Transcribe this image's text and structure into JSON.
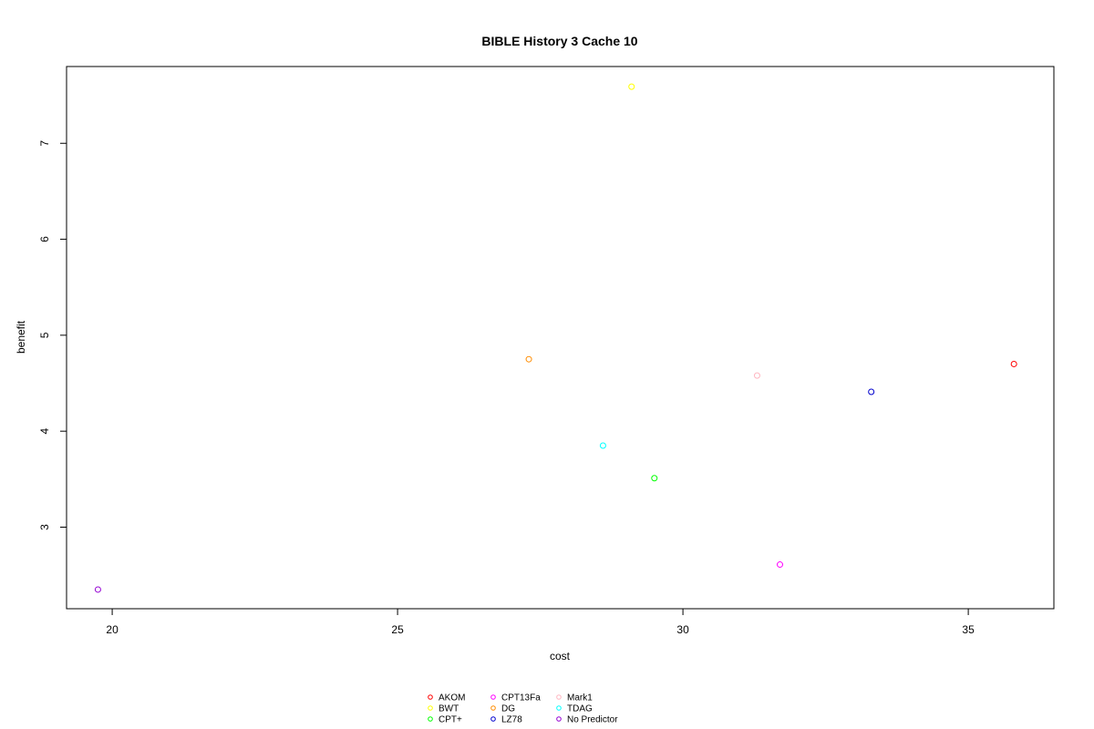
{
  "chart_data": {
    "type": "scatter",
    "title": "BIBLE  History  3  Cache  10",
    "xlabel": "cost",
    "ylabel": "benefit",
    "xlim": [
      19.2,
      36.5
    ],
    "ylim": [
      2.15,
      7.8
    ],
    "x_ticks": [
      20,
      25,
      30,
      35
    ],
    "y_ticks": [
      3,
      4,
      5,
      6,
      7
    ],
    "grid": false,
    "legend_position": "bottom-center",
    "series": [
      {
        "name": "AKOM",
        "color": "#ff0000",
        "x": 35.8,
        "y": 4.7
      },
      {
        "name": "BWT",
        "color": "#ffff00",
        "x": 29.1,
        "y": 7.59
      },
      {
        "name": "CPT+",
        "color": "#00ff00",
        "x": 29.5,
        "y": 3.51
      },
      {
        "name": "CPT13Fa",
        "color": "#ff00ff",
        "x": 31.7,
        "y": 2.61
      },
      {
        "name": "DG",
        "color": "#ff8c00",
        "x": 27.3,
        "y": 4.75
      },
      {
        "name": "LZ78",
        "color": "#0000cd",
        "x": 33.3,
        "y": 4.41
      },
      {
        "name": "Mark1",
        "color": "#ffb6c1",
        "x": 31.3,
        "y": 4.58
      },
      {
        "name": "TDAG",
        "color": "#00ffff",
        "x": 28.6,
        "y": 3.85
      },
      {
        "name": "No Predictor",
        "color": "#9400d3",
        "x": 19.75,
        "y": 2.35
      }
    ]
  }
}
